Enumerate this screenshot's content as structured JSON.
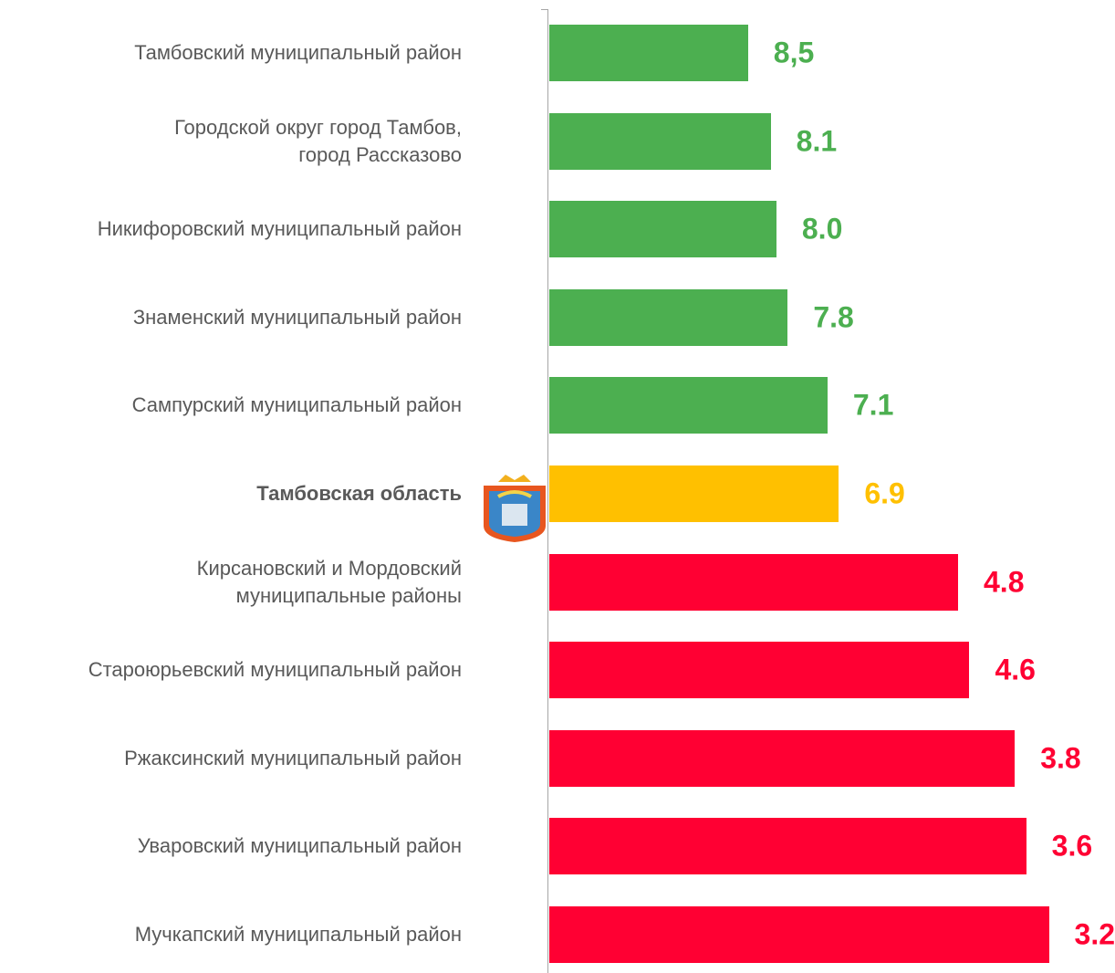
{
  "chart_data": {
    "type": "bar",
    "orientation": "horizontal",
    "categories": [
      "Тамбовский муниципальный район",
      "Городской округ город Тамбов,\nгород Рассказово",
      "Никифоровский муниципальный район",
      "Знаменский муниципальный район",
      "Сампурский муниципальный район",
      "Тамбовская область",
      "Кирсановский и Мордовский\nмуниципальные районы",
      "Староюрьевский муниципальный район",
      "Ржаксинский муниципальный район",
      "Уваровский муниципальный район",
      "Мучкапский муниципальный район"
    ],
    "values": [
      8.5,
      8.1,
      8.0,
      7.8,
      7.1,
      6.9,
      4.8,
      4.6,
      3.8,
      3.6,
      3.2
    ],
    "value_labels": [
      "8,5",
      "8.1",
      "8.0",
      "7.8",
      "7.1",
      "6.9",
      "4.8",
      "4.6",
      "3.8",
      "3.6",
      "3.2"
    ],
    "colors": [
      "#4caf50",
      "#4caf50",
      "#4caf50",
      "#4caf50",
      "#4caf50",
      "#ffc000",
      "#ff0033",
      "#ff0033",
      "#ff0033",
      "#ff0033",
      "#ff0033"
    ],
    "highlight": 5,
    "xlim": [
      12,
      3
    ]
  }
}
